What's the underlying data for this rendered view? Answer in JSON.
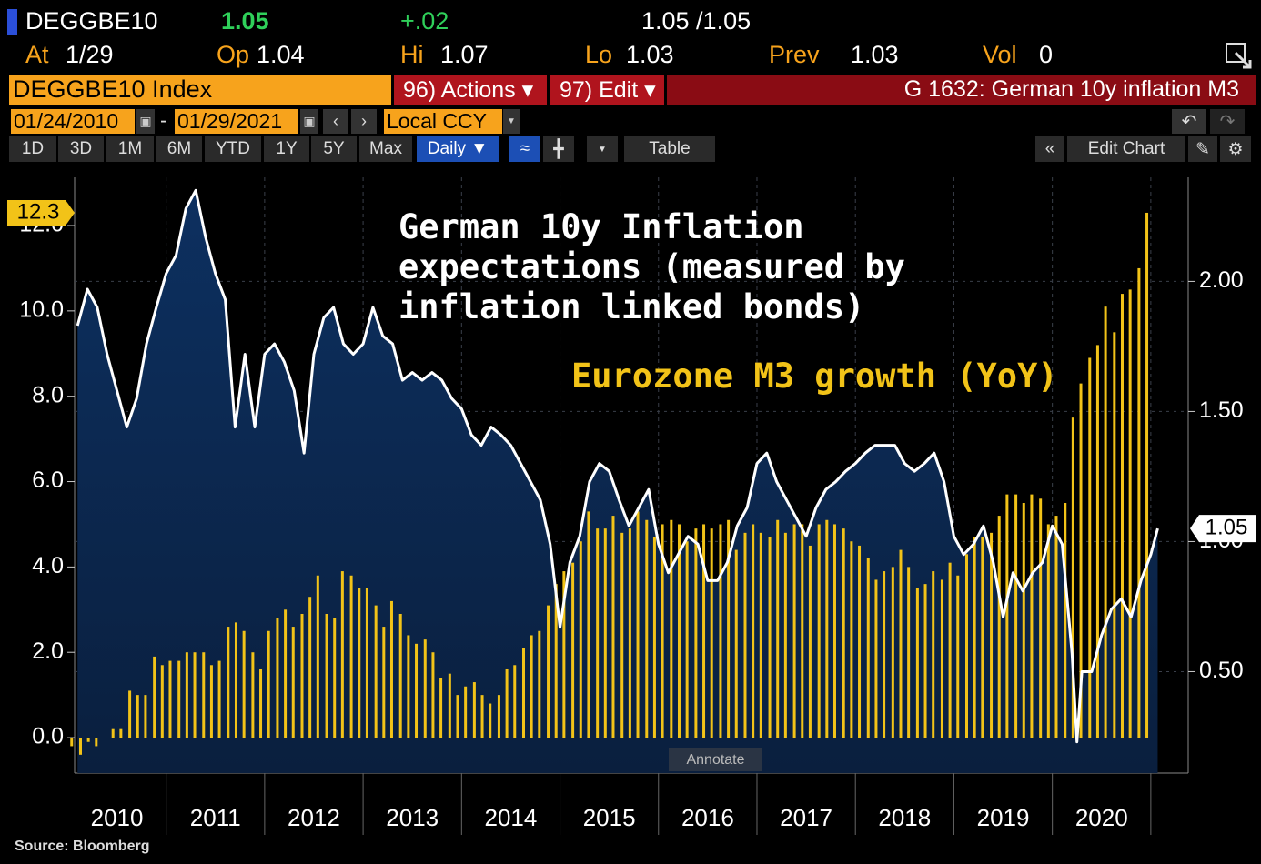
{
  "terminal": {
    "ticker": "DEGGBE10",
    "last": "1.05",
    "change": "+.02",
    "bid_ask": "1.05 /1.05",
    "stats": [
      {
        "label": "At",
        "value": "1/29"
      },
      {
        "label": "Op",
        "value": "1.04"
      },
      {
        "label": "Hi",
        "value": "1.07"
      },
      {
        "label": "Lo",
        "value": "1.03"
      },
      {
        "label": "Prev",
        "value": "1.03"
      },
      {
        "label": "Vol",
        "value": "0"
      }
    ],
    "security": "DEGGBE10 Index",
    "menus": [
      "96) Actions ▾",
      "97) Edit ▾"
    ],
    "chart_id": "G 1632: German 10y inflation M3",
    "date_from": "01/24/2010",
    "date_separator": "-",
    "date_to": "01/29/2021",
    "currency": "Local CCY",
    "periods": [
      "1D",
      "3D",
      "1M",
      "6M",
      "YTD",
      "1Y",
      "5Y",
      "Max"
    ],
    "frequency": "Daily ▼",
    "table": "Table",
    "edit_chart": "Edit Chart",
    "annotate": "Annotate"
  },
  "chart_data": {
    "type": "bar_line",
    "xlim": [
      2010.07,
      2021.38
    ],
    "xticks": [
      2011,
      2012,
      2013,
      2014,
      2015,
      2016,
      2017,
      2018,
      2019,
      2020,
      2021
    ],
    "x_labels": [
      "2010",
      "2011",
      "2012",
      "2013",
      "2014",
      "2015",
      "2016",
      "2017",
      "2018",
      "2019",
      "2020"
    ],
    "ylim": [
      -0.83,
      13.13
    ],
    "yticks": [
      {
        "value": 0,
        "label": "0.0"
      },
      {
        "value": 2,
        "label": "2.0"
      },
      {
        "value": 4,
        "label": "4.0"
      },
      {
        "value": 6,
        "label": "6.0"
      },
      {
        "value": 8,
        "label": "8.0"
      },
      {
        "value": 10,
        "label": "10.0"
      },
      {
        "value": 12,
        "label": "12.0"
      }
    ],
    "y2lim": [
      0.11,
      2.4
    ],
    "y2ticks": [
      {
        "value": 0.5,
        "label": "0.50"
      },
      {
        "value": 1,
        "label": "1.00"
      },
      {
        "value": 1.5,
        "label": "1.50"
      },
      {
        "value": 2,
        "label": "2.00"
      }
    ],
    "grid": true,
    "series": [
      {
        "name": "Eurozone M3 growth (YoY)",
        "type": "bar",
        "axis": "y",
        "color": "#f2c318",
        "x": [
          2010.04,
          2010.13,
          2010.21,
          2010.29,
          2010.38,
          2010.46,
          2010.54,
          2010.63,
          2010.71,
          2010.79,
          2010.88,
          2010.96,
          2011.04,
          2011.13,
          2011.21,
          2011.29,
          2011.38,
          2011.46,
          2011.54,
          2011.63,
          2011.71,
          2011.79,
          2011.88,
          2011.96,
          2012.04,
          2012.13,
          2012.21,
          2012.29,
          2012.38,
          2012.46,
          2012.54,
          2012.63,
          2012.71,
          2012.79,
          2012.88,
          2012.96,
          2013.04,
          2013.13,
          2013.21,
          2013.29,
          2013.38,
          2013.46,
          2013.54,
          2013.63,
          2013.71,
          2013.79,
          2013.88,
          2013.96,
          2014.04,
          2014.13,
          2014.21,
          2014.29,
          2014.38,
          2014.46,
          2014.54,
          2014.63,
          2014.71,
          2014.79,
          2014.88,
          2014.96,
          2015.04,
          2015.13,
          2015.21,
          2015.29,
          2015.38,
          2015.46,
          2015.54,
          2015.63,
          2015.71,
          2015.79,
          2015.88,
          2015.96,
          2016.04,
          2016.13,
          2016.21,
          2016.29,
          2016.38,
          2016.46,
          2016.54,
          2016.63,
          2016.71,
          2016.79,
          2016.88,
          2016.96,
          2017.04,
          2017.13,
          2017.21,
          2017.29,
          2017.38,
          2017.46,
          2017.54,
          2017.63,
          2017.71,
          2017.79,
          2017.88,
          2017.96,
          2018.04,
          2018.13,
          2018.21,
          2018.29,
          2018.38,
          2018.46,
          2018.54,
          2018.63,
          2018.71,
          2018.79,
          2018.88,
          2018.96,
          2019.04,
          2019.13,
          2019.21,
          2019.29,
          2019.38,
          2019.46,
          2019.54,
          2019.63,
          2019.71,
          2019.79,
          2019.88,
          2019.96,
          2020.04,
          2020.13,
          2020.21,
          2020.29,
          2020.38,
          2020.46,
          2020.54,
          2020.63,
          2020.71,
          2020.79,
          2020.88,
          2020.96
        ],
        "values": [
          -0.2,
          -0.4,
          -0.1,
          -0.2,
          0.0,
          0.2,
          0.2,
          1.1,
          1.0,
          1.0,
          1.9,
          1.7,
          1.8,
          1.8,
          2.0,
          2.0,
          2.0,
          1.7,
          1.8,
          2.6,
          2.7,
          2.5,
          2.0,
          1.6,
          2.5,
          2.8,
          3.0,
          2.6,
          2.9,
          3.3,
          3.8,
          2.9,
          2.8,
          3.9,
          3.8,
          3.5,
          3.5,
          3.1,
          2.6,
          3.2,
          2.9,
          2.4,
          2.2,
          2.3,
          2.0,
          1.4,
          1.5,
          1.0,
          1.2,
          1.3,
          1.0,
          0.8,
          1.0,
          1.6,
          1.7,
          2.1,
          2.4,
          2.5,
          3.1,
          3.6,
          3.9,
          4.1,
          4.6,
          5.3,
          4.9,
          4.9,
          5.2,
          4.8,
          4.9,
          5.3,
          5.1,
          4.7,
          5.0,
          5.1,
          5.0,
          4.6,
          4.9,
          5.0,
          4.9,
          5.0,
          5.1,
          4.4,
          4.8,
          5.0,
          4.8,
          4.7,
          5.1,
          4.8,
          5.0,
          5.0,
          4.5,
          5.0,
          5.1,
          5.0,
          4.9,
          4.6,
          4.5,
          4.2,
          3.7,
          3.9,
          4.0,
          4.4,
          4.0,
          3.5,
          3.6,
          3.9,
          3.7,
          4.1,
          3.8,
          4.3,
          4.7,
          4.7,
          4.8,
          5.2,
          5.7,
          5.7,
          5.5,
          5.7,
          5.6,
          5.0,
          5.2,
          5.5,
          7.5,
          8.3,
          8.9,
          9.2,
          10.1,
          9.5,
          10.4,
          10.5,
          11.0,
          12.3
        ]
      },
      {
        "name": "German 10y Inflation expectations (measured by inflation linked bonds)",
        "type": "line",
        "axis": "y2",
        "color": "#ffffff",
        "x": [
          2010.1,
          2010.2,
          2010.3,
          2010.4,
          2010.5,
          2010.6,
          2010.7,
          2010.8,
          2010.9,
          2011.0,
          2011.1,
          2011.2,
          2011.3,
          2011.4,
          2011.5,
          2011.6,
          2011.7,
          2011.8,
          2011.9,
          2012.0,
          2012.1,
          2012.2,
          2012.3,
          2012.4,
          2012.5,
          2012.6,
          2012.7,
          2012.8,
          2012.9,
          2013.0,
          2013.1,
          2013.2,
          2013.3,
          2013.4,
          2013.5,
          2013.6,
          2013.7,
          2013.8,
          2013.9,
          2014.0,
          2014.1,
          2014.2,
          2014.3,
          2014.4,
          2014.5,
          2014.6,
          2014.7,
          2014.8,
          2014.9,
          2015.0,
          2015.1,
          2015.2,
          2015.3,
          2015.4,
          2015.5,
          2015.6,
          2015.7,
          2015.8,
          2015.9,
          2016.0,
          2016.1,
          2016.2,
          2016.3,
          2016.4,
          2016.5,
          2016.6,
          2016.7,
          2016.8,
          2016.9,
          2017.0,
          2017.1,
          2017.2,
          2017.3,
          2017.4,
          2017.5,
          2017.6,
          2017.7,
          2017.8,
          2017.9,
          2018.0,
          2018.1,
          2018.2,
          2018.3,
          2018.4,
          2018.5,
          2018.6,
          2018.7,
          2018.8,
          2018.9,
          2019.0,
          2019.1,
          2019.2,
          2019.3,
          2019.4,
          2019.5,
          2019.6,
          2019.7,
          2019.8,
          2019.9,
          2020.0,
          2020.1,
          2020.2,
          2020.25,
          2020.3,
          2020.4,
          2020.5,
          2020.6,
          2020.7,
          2020.8,
          2020.9,
          2021.0,
          2021.07
        ],
        "values": [
          1.83,
          1.97,
          1.9,
          1.72,
          1.58,
          1.44,
          1.55,
          1.76,
          1.9,
          2.03,
          2.1,
          2.28,
          2.35,
          2.17,
          2.03,
          1.93,
          1.44,
          1.72,
          1.44,
          1.72,
          1.76,
          1.69,
          1.58,
          1.34,
          1.72,
          1.86,
          1.9,
          1.76,
          1.72,
          1.76,
          1.9,
          1.79,
          1.76,
          1.62,
          1.65,
          1.62,
          1.65,
          1.62,
          1.55,
          1.51,
          1.41,
          1.37,
          1.44,
          1.41,
          1.37,
          1.3,
          1.23,
          1.16,
          0.99,
          0.67,
          0.92,
          1.02,
          1.23,
          1.3,
          1.27,
          1.16,
          1.06,
          1.13,
          1.2,
          0.99,
          0.88,
          0.95,
          1.02,
          0.99,
          0.85,
          0.85,
          0.92,
          1.06,
          1.13,
          1.3,
          1.34,
          1.23,
          1.16,
          1.09,
          1.02,
          1.13,
          1.2,
          1.23,
          1.27,
          1.3,
          1.34,
          1.37,
          1.37,
          1.37,
          1.3,
          1.27,
          1.3,
          1.34,
          1.23,
          1.02,
          0.95,
          0.99,
          1.06,
          0.92,
          0.71,
          0.88,
          0.81,
          0.88,
          0.92,
          1.06,
          0.99,
          0.57,
          0.23,
          0.5,
          0.5,
          0.64,
          0.74,
          0.78,
          0.71,
          0.85,
          0.95,
          1.05
        ]
      }
    ]
  },
  "source": "Source: Bloomberg"
}
